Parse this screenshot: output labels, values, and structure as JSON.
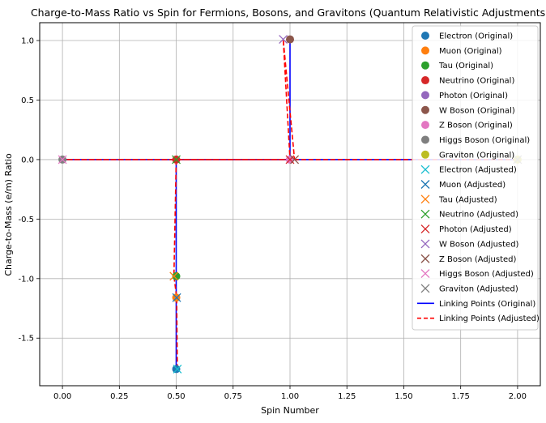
{
  "chart_data": {
    "type": "scatter",
    "title": "Charge-to-Mass Ratio vs Spin for Fermions, Bosons, and Gravitons (Quantum Relativistic Adjustments)",
    "xlabel": "Spin Number",
    "ylabel": "Charge-to-Mass (e/m) Ratio",
    "xlim": [
      -0.1,
      2.1
    ],
    "ylim": [
      -1.9,
      1.15
    ],
    "xticks": [
      "0.00",
      "0.25",
      "0.50",
      "0.75",
      "1.00",
      "1.25",
      "1.50",
      "1.75",
      "2.00"
    ],
    "xtick_values": [
      0,
      0.25,
      0.5,
      0.75,
      1.0,
      1.25,
      1.5,
      1.75,
      2.0
    ],
    "yticks": [
      "1.0",
      "0.5",
      "0.0",
      "-0.5",
      "-1.0",
      "-1.5"
    ],
    "ytick_values": [
      1.0,
      0.5,
      0.0,
      -0.5,
      -1.0,
      -1.5
    ],
    "grid": true,
    "legend_position": "top-right",
    "series": [
      {
        "name": "Electron (Original)",
        "marker": "circle",
        "color": "#1f77b4",
        "x": 0.5,
        "y": -1.76
      },
      {
        "name": "Muon (Original)",
        "marker": "circle",
        "color": "#ff7f0e",
        "x": 0.5,
        "y": -1.16
      },
      {
        "name": "Tau (Original)",
        "marker": "circle",
        "color": "#2ca02c",
        "x": 0.5,
        "y": -0.98
      },
      {
        "name": "Neutrino (Original)",
        "marker": "circle",
        "color": "#d62728",
        "x": 0.5,
        "y": 0.0
      },
      {
        "name": "Photon (Original)",
        "marker": "circle",
        "color": "#9467bd",
        "x": 1.0,
        "y": 0.0
      },
      {
        "name": "W Boson (Original)",
        "marker": "circle",
        "color": "#8c564b",
        "x": 1.0,
        "y": 1.01
      },
      {
        "name": "Z Boson (Original)",
        "marker": "circle",
        "color": "#e377c2",
        "x": 1.0,
        "y": 0.0
      },
      {
        "name": "Higgs Boson (Original)",
        "marker": "circle",
        "color": "#7f7f7f",
        "x": 0.0,
        "y": 0.0
      },
      {
        "name": "Graviton (Original)",
        "marker": "circle",
        "color": "#bcbd22",
        "x": 2.0,
        "y": 0.0
      },
      {
        "name": "Electron (Adjusted)",
        "marker": "x",
        "color": "#17becf",
        "x": 0.505,
        "y": -1.76
      },
      {
        "name": "Muon (Adjusted)",
        "marker": "x",
        "color": "#1f77b4",
        "x": 0.502,
        "y": -1.16
      },
      {
        "name": "Tau (Adjusted)",
        "marker": "x",
        "color": "#ff7f0e",
        "x": 0.49,
        "y": -0.98
      },
      {
        "name": "Neutrino (Adjusted)",
        "marker": "x",
        "color": "#2ca02c",
        "x": 0.5,
        "y": 0.0
      },
      {
        "name": "Photon (Adjusted)",
        "marker": "x",
        "color": "#d62728",
        "x": 1.0,
        "y": 0.0
      },
      {
        "name": "W Boson (Adjusted)",
        "marker": "x",
        "color": "#9467bd",
        "x": 0.97,
        "y": 1.01
      },
      {
        "name": "Z Boson (Adjusted)",
        "marker": "x",
        "color": "#8c564b",
        "x": 1.02,
        "y": 0.0
      },
      {
        "name": "Higgs Boson (Adjusted)",
        "marker": "x",
        "color": "#e377c2",
        "x": 0.0,
        "y": 0.0
      },
      {
        "name": "Graviton (Adjusted)",
        "marker": "x",
        "color": "#7f7f7f",
        "x": 2.0,
        "y": 0.0
      }
    ],
    "lines": [
      {
        "name": "Linking Points (Original)",
        "style": "solid",
        "color": "#0000ff",
        "x": [
          0.5,
          0.5,
          0.5,
          0.5,
          1.0,
          1.0,
          1.0,
          0.0,
          2.0
        ],
        "y": [
          -1.76,
          -1.16,
          -0.98,
          0.0,
          0.0,
          1.01,
          0.0,
          0.0,
          0.0
        ]
      },
      {
        "name": "Linking Points (Adjusted)",
        "style": "dashed",
        "color": "#ff0000",
        "x": [
          0.505,
          0.502,
          0.49,
          0.5,
          1.0,
          0.97,
          1.02,
          0.0,
          2.0
        ],
        "y": [
          -1.76,
          -1.16,
          -0.98,
          0.0,
          0.0,
          1.01,
          0.0,
          0.0,
          0.0
        ]
      }
    ]
  }
}
